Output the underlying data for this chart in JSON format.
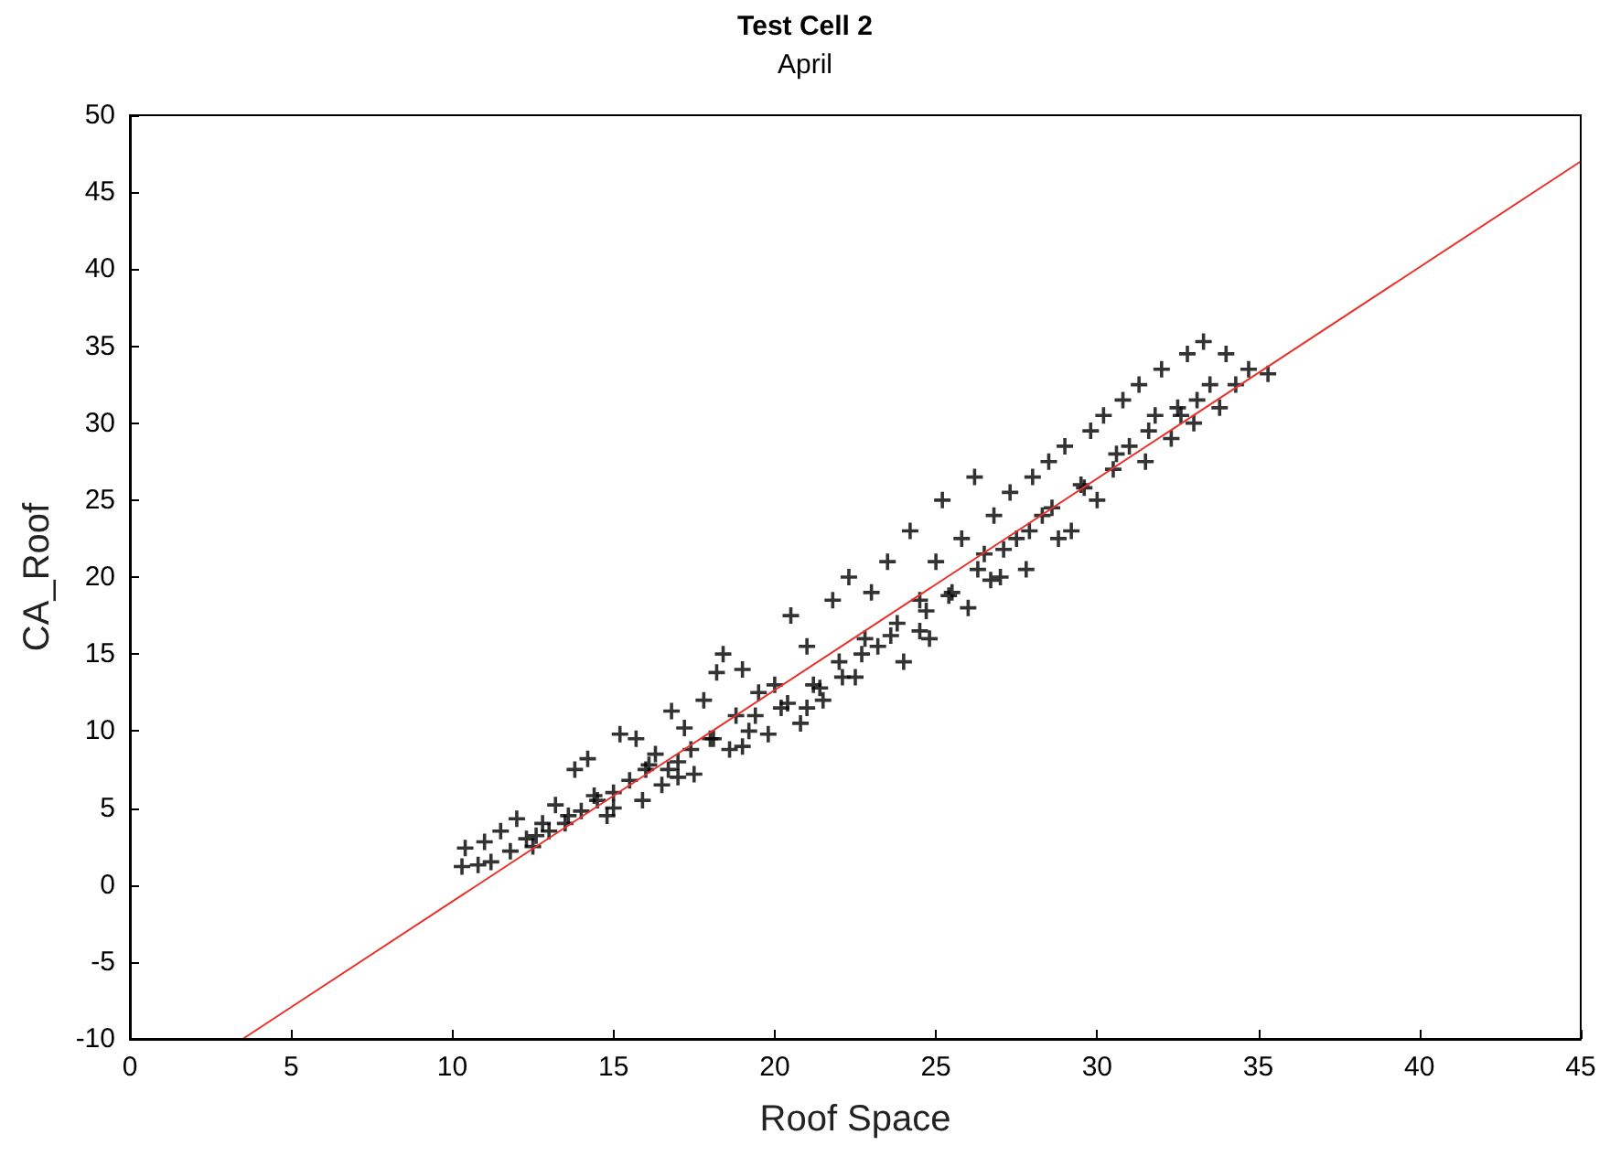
{
  "chart_data": {
    "type": "scatter",
    "title": "Test Cell 2",
    "subtitle": "April",
    "xlabel": "Roof Space",
    "ylabel": "CA_Roof",
    "xlim": [
      0,
      45
    ],
    "ylim": [
      -10,
      50
    ],
    "xticks": [
      0,
      5,
      10,
      15,
      20,
      25,
      30,
      35,
      40,
      45
    ],
    "yticks": [
      -10,
      -5,
      0,
      5,
      10,
      15,
      20,
      25,
      30,
      35,
      40,
      45,
      50
    ],
    "grid": false,
    "marker": "cross",
    "series": [
      {
        "color": "#000000",
        "x": [
          12.6,
          13.6,
          14.4,
          16.1,
          16.7,
          17.4,
          18.1,
          19.4,
          20.4,
          21.4,
          22.1,
          22.7,
          23.6,
          24.7,
          25.4,
          26.3,
          27.1,
          27.9,
          28.6,
          29.6,
          30.6,
          31.6,
          32.6,
          33.1,
          10.3,
          10.4,
          10.8,
          11,
          11.2,
          11.5,
          11.8,
          12,
          12.3,
          12.5,
          12.8,
          13,
          13.2,
          13.5,
          13.8,
          14,
          14.2,
          14.5,
          14.8,
          15,
          15.2,
          15.5,
          15.7,
          15.9,
          16,
          16.3,
          16.5,
          16.8,
          17,
          17.2,
          17.5,
          17.8,
          18,
          18.2,
          18.4,
          18.6,
          18.8,
          19,
          19.2,
          19.5,
          19.8,
          20,
          20.2,
          20.5,
          20.8,
          21,
          21.2,
          21.5,
          21.8,
          22,
          22.3,
          22.5,
          22.8,
          23,
          23.2,
          23.5,
          23.8,
          24,
          24.2,
          24.5,
          24.8,
          25,
          25.2,
          25.5,
          25.8,
          26,
          26.2,
          26.5,
          26.8,
          27,
          27.3,
          27.5,
          27.8,
          28,
          28.3,
          28.5,
          28.8,
          29,
          29.2,
          29.5,
          29.8,
          30,
          30.2,
          30.5,
          30.8,
          31,
          31.3,
          31.5,
          31.8,
          32,
          32.3,
          32.5,
          32.8,
          33,
          33.3,
          33.5,
          33.8,
          34,
          34.3,
          34.7,
          35.3,
          26.7,
          24.5,
          21,
          19,
          17,
          15
        ],
        "values": [
          3.2,
          4.5,
          5.8,
          7.8,
          7.5,
          8.8,
          9.5,
          11,
          11.8,
          12.8,
          13.5,
          15,
          16.2,
          17.8,
          18.8,
          20.5,
          21.8,
          23,
          24.5,
          25.8,
          28,
          29.5,
          30.5,
          31.5,
          1.2,
          2.4,
          1.3,
          2.8,
          1.5,
          3.5,
          2.2,
          4.3,
          3,
          2.5,
          4,
          3.5,
          5.2,
          4,
          7.5,
          4.8,
          8.2,
          5.5,
          4.5,
          6,
          9.8,
          6.8,
          9.5,
          5.5,
          7.5,
          8.5,
          6.5,
          11.3,
          8,
          10.2,
          7.2,
          12,
          9.5,
          13.8,
          15,
          8.8,
          11,
          14,
          10,
          12.5,
          9.8,
          13,
          11.5,
          17.5,
          10.5,
          15.5,
          13,
          12,
          18.5,
          14.5,
          20,
          13.5,
          16,
          19,
          15.5,
          21,
          17,
          14.5,
          23,
          18.5,
          16,
          21,
          25,
          19,
          22.5,
          18,
          26.5,
          21.5,
          24,
          20,
          25.5,
          22.5,
          20.5,
          26.5,
          24,
          27.5,
          22.5,
          28.5,
          23,
          26,
          29.5,
          25,
          30.5,
          27,
          31.5,
          28.5,
          32.5,
          27.5,
          30.5,
          33.5,
          29,
          31,
          34.5,
          30,
          35.3,
          32.5,
          31,
          34.5,
          32.5,
          33.5,
          33.2,
          19.8,
          16.5,
          11.5,
          9,
          7,
          5
        ]
      },
      {
        "type": "line",
        "color": "#e8322b",
        "marker": "none",
        "x": [
          3.5,
          45
        ],
        "values": [
          -10,
          47
        ]
      }
    ]
  }
}
